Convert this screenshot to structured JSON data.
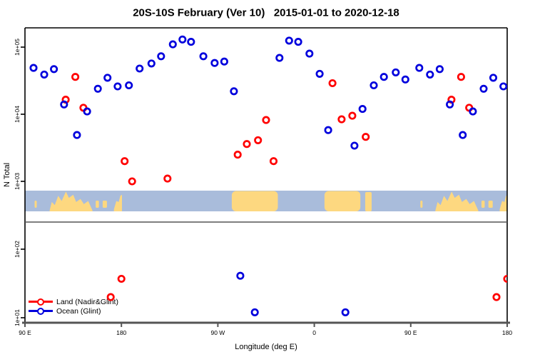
{
  "title": "20S-10S February (Ver 10)   2015-01-01 to 2020-12-18",
  "chart_data": {
    "type": "scatter",
    "title": "20S-10S February (Ver 10)   2015-01-01 to 2020-12-18",
    "xlabel": "Longitude (deg E)",
    "ylabel": "N Total",
    "x_axis": {
      "note": "longitude axis spans 450 deg; the 90E-180 sector is repeated",
      "range_deg_east": [
        90,
        540
      ],
      "ticks": [
        {
          "label": "90 E",
          "lon": 90
        },
        {
          "label": "180",
          "lon": 180
        },
        {
          "label": "90 W",
          "lon": 270
        },
        {
          "label": "0",
          "lon": 360
        },
        {
          "label": "90 E",
          "lon": 450
        },
        {
          "label": "180",
          "lon": 540
        }
      ]
    },
    "y_axis": {
      "scale": "log",
      "ticks": [
        {
          "label": "1e+05",
          "value": 100000,
          "panel": "upper"
        },
        {
          "label": "1e+04",
          "value": 10000,
          "panel": "upper"
        },
        {
          "label": "1e+03",
          "value": 1000,
          "panel": "upper"
        },
        {
          "label": "1e+02",
          "value": 100,
          "panel": "lower"
        },
        {
          "label": "1e+01",
          "value": 10,
          "panel": "lower"
        }
      ]
    },
    "series": [
      {
        "name": "Land (Nadir&Glint)",
        "color": "#ff0000",
        "points_upper": [
          [
            128,
            16500
          ],
          [
            137,
            36000
          ],
          [
            144.5,
            12500
          ],
          [
            183,
            2000
          ],
          [
            190,
            1000
          ],
          [
            223,
            1100
          ],
          [
            288.5,
            2500
          ],
          [
            297,
            3600
          ],
          [
            307.5,
            4100
          ],
          [
            315,
            8200
          ],
          [
            322,
            2000
          ],
          [
            377,
            29000
          ],
          [
            385.5,
            8400
          ],
          [
            395.5,
            9500
          ],
          [
            408,
            4600
          ]
        ],
        "points_lower": [
          [
            170,
            20
          ],
          [
            180,
            37
          ]
        ]
      },
      {
        "name": "Ocean (Glint)",
        "color": "#0000dd",
        "points_upper": [
          [
            98,
            49000
          ],
          [
            108,
            39000
          ],
          [
            117,
            47000
          ],
          [
            126.5,
            14000
          ],
          [
            138.5,
            4900
          ],
          [
            148,
            11000
          ],
          [
            158,
            24000
          ],
          [
            167,
            35000
          ],
          [
            176.5,
            26000
          ],
          [
            187,
            27000
          ],
          [
            197,
            48000
          ],
          [
            208,
            57000
          ],
          [
            217,
            73000
          ],
          [
            228,
            110000
          ],
          [
            237,
            130000
          ],
          [
            245,
            120000
          ],
          [
            256.5,
            73000
          ],
          [
            267,
            58000
          ],
          [
            276,
            61000
          ],
          [
            285,
            22000
          ],
          [
            327.5,
            69000
          ],
          [
            336.5,
            125000
          ],
          [
            345,
            120000
          ],
          [
            355.5,
            80000
          ],
          [
            365,
            40000
          ],
          [
            373,
            5800
          ],
          [
            397.5,
            3400
          ],
          [
            405,
            12000
          ],
          [
            415.5,
            27000
          ],
          [
            425,
            36000
          ],
          [
            436,
            42000
          ],
          [
            445,
            33000
          ]
        ],
        "points_lower": [
          [
            291,
            41
          ],
          [
            304.5,
            12
          ],
          [
            389,
            12
          ]
        ]
      }
    ],
    "map_strip": {
      "description": "20S-10S latitude land/ocean strip",
      "ocean_color": "#a9bcdb",
      "land_color": "#fdd880",
      "land_segments": [
        {
          "lon0": 99,
          "lon1": 101,
          "shape": "islet"
        },
        {
          "lon0": 113,
          "lon1": 153,
          "shape": "jagged"
        },
        {
          "lon0": 156,
          "lon1": 159,
          "shape": "islet"
        },
        {
          "lon0": 162.5,
          "lon1": 166.5,
          "shape": "islet"
        },
        {
          "lon0": 173,
          "lon1": 180.5,
          "shape": "patch"
        },
        {
          "lon0": 283,
          "lon1": 326,
          "shape": "dome"
        },
        {
          "lon0": 369.5,
          "lon1": 403,
          "shape": "dome"
        },
        {
          "lon0": 407.5,
          "lon1": 413.5,
          "shape": "sliver"
        }
      ]
    },
    "legend_position": "bottom-left"
  }
}
